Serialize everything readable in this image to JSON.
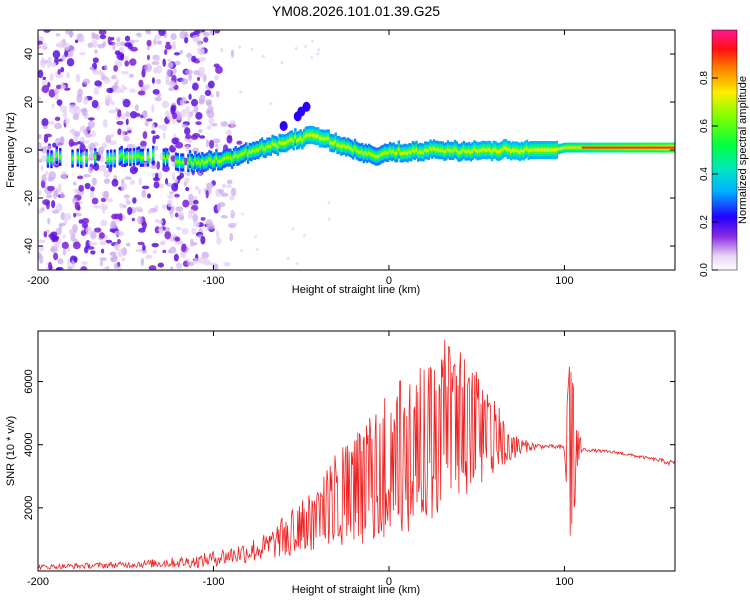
{
  "title": "YM08.2026.101.01.39.G25",
  "colors": {
    "snr_line": "#ee2222",
    "ridge_core": "#ff2020",
    "scatter": "#8a2be2"
  },
  "chart_data": [
    {
      "type": "heatmap",
      "name": "spectrogram",
      "xlabel": "Height of straight line (km)",
      "ylabel": "Frequency (Hz)",
      "xlim": [
        -200,
        163
      ],
      "ylim": [
        -50,
        50
      ],
      "xticks": [
        -200,
        -100,
        0,
        100
      ],
      "yticks": [
        -40,
        -20,
        0,
        20,
        40
      ],
      "ridge": {
        "x": [
          -200,
          -170,
          -150,
          -130,
          -115,
          -105,
          -90,
          -75,
          -60,
          -50,
          -42,
          -35,
          -28,
          -20,
          -12,
          -5,
          0,
          10,
          20,
          40,
          60,
          80,
          95,
          100,
          120,
          140,
          163
        ],
        "freq_hz": [
          -3,
          -3,
          -3,
          -3,
          -5,
          -5,
          -3,
          0,
          3,
          5,
          6,
          4,
          2,
          0,
          -2,
          -2,
          -1,
          -1,
          0,
          0,
          0,
          0,
          0,
          1,
          1,
          1,
          1
        ],
        "amplitude": [
          0.15,
          0.25,
          0.25,
          0.25,
          0.3,
          0.35,
          0.35,
          0.4,
          0.45,
          0.45,
          0.5,
          0.45,
          0.45,
          0.4,
          0.4,
          0.4,
          0.42,
          0.45,
          0.45,
          0.45,
          0.5,
          0.5,
          0.55,
          0.6,
          0.75,
          0.85,
          0.95
        ]
      },
      "noise_scatter": {
        "description_region_x": [
          -200,
          -95
        ],
        "freq_range": [
          -50,
          50
        ]
      },
      "colorbar": {
        "label": "Normalized spectral amplitude",
        "range": [
          0,
          1
        ],
        "ticks": [
          "0.0",
          "0.2",
          "0.4",
          "0.6",
          "0.8"
        ]
      }
    },
    {
      "type": "line",
      "name": "snr",
      "xlabel": "Height of straight line (km)",
      "ylabel": "SNR (10 * v/v)",
      "xlim": [
        -200,
        163
      ],
      "ylim": [
        0,
        7600
      ],
      "xticks": [
        -200,
        -100,
        0,
        100
      ],
      "yticks": [
        2000,
        4000,
        6000
      ],
      "envelope": {
        "x": [
          -200,
          -150,
          -110,
          -90,
          -70,
          -55,
          -40,
          -30,
          -20,
          -10,
          0,
          10,
          20,
          30,
          40,
          50,
          60,
          70,
          80,
          90,
          100,
          103,
          110,
          130,
          150,
          163
        ],
        "low": [
          50,
          100,
          100,
          200,
          300,
          500,
          700,
          800,
          800,
          900,
          1000,
          1200,
          1500,
          1800,
          2200,
          2600,
          3000,
          3500,
          3800,
          3900,
          3800,
          1000,
          3800,
          3700,
          3500,
          3300
        ],
        "high": [
          200,
          300,
          500,
          800,
          1200,
          2000,
          2700,
          3800,
          4500,
          5000,
          5800,
          6300,
          7000,
          7400,
          7300,
          7000,
          5500,
          4400,
          4100,
          4000,
          4000,
          6600,
          3900,
          3800,
          3600,
          3500
        ]
      }
    }
  ]
}
